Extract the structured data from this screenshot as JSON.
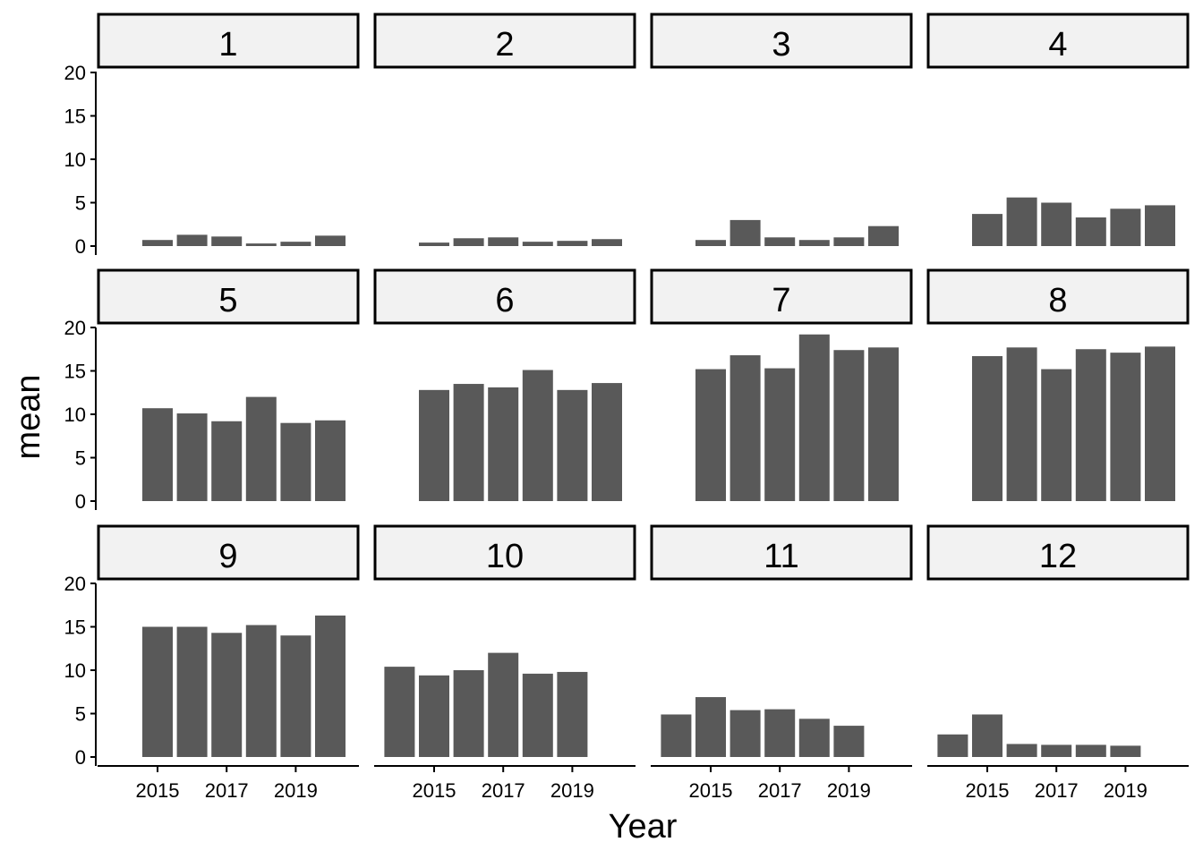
{
  "chart_data": {
    "type": "bar",
    "xlabel": "Year",
    "ylabel": "mean",
    "x": [
      2014,
      2015,
      2016,
      2017,
      2018,
      2019,
      2020
    ],
    "x_tick_labels": [
      "2015",
      "2017",
      "2019"
    ],
    "x_tick_values": [
      2015,
      2017,
      2019
    ],
    "y_ticks": [
      0,
      5,
      10,
      15,
      20
    ],
    "ylim": [
      0,
      20
    ],
    "grid": false,
    "colors": {
      "bar": "#595959",
      "strip_fill": "#f2f2f2",
      "strip_border": "#000000"
    },
    "panels": [
      {
        "label": "1",
        "values": [
          null,
          0.7,
          1.3,
          1.1,
          0.3,
          0.5,
          1.2
        ]
      },
      {
        "label": "2",
        "values": [
          null,
          0.4,
          0.9,
          1.0,
          0.5,
          0.6,
          0.8
        ]
      },
      {
        "label": "3",
        "values": [
          null,
          0.7,
          3.0,
          1.0,
          0.7,
          1.0,
          2.3
        ]
      },
      {
        "label": "4",
        "values": [
          null,
          3.7,
          5.6,
          5.0,
          3.3,
          4.3,
          4.7
        ]
      },
      {
        "label": "5",
        "values": [
          null,
          10.7,
          10.1,
          9.2,
          12.0,
          9.0,
          9.3
        ]
      },
      {
        "label": "6",
        "values": [
          null,
          12.8,
          13.5,
          13.1,
          15.1,
          12.8,
          13.6
        ]
      },
      {
        "label": "7",
        "values": [
          null,
          15.2,
          16.8,
          15.3,
          19.2,
          17.4,
          17.7
        ]
      },
      {
        "label": "8",
        "values": [
          null,
          16.7,
          17.7,
          15.2,
          17.5,
          17.1,
          17.8
        ]
      },
      {
        "label": "9",
        "values": [
          null,
          15.0,
          15.0,
          14.3,
          15.2,
          14.0,
          16.3
        ]
      },
      {
        "label": "10",
        "values": [
          10.4,
          9.4,
          10.0,
          12.0,
          9.6,
          9.8,
          null
        ]
      },
      {
        "label": "11",
        "values": [
          4.9,
          6.9,
          5.4,
          5.5,
          4.4,
          3.6,
          null
        ]
      },
      {
        "label": "12",
        "values": [
          2.6,
          4.9,
          1.5,
          1.4,
          1.4,
          1.3,
          null
        ]
      }
    ]
  }
}
